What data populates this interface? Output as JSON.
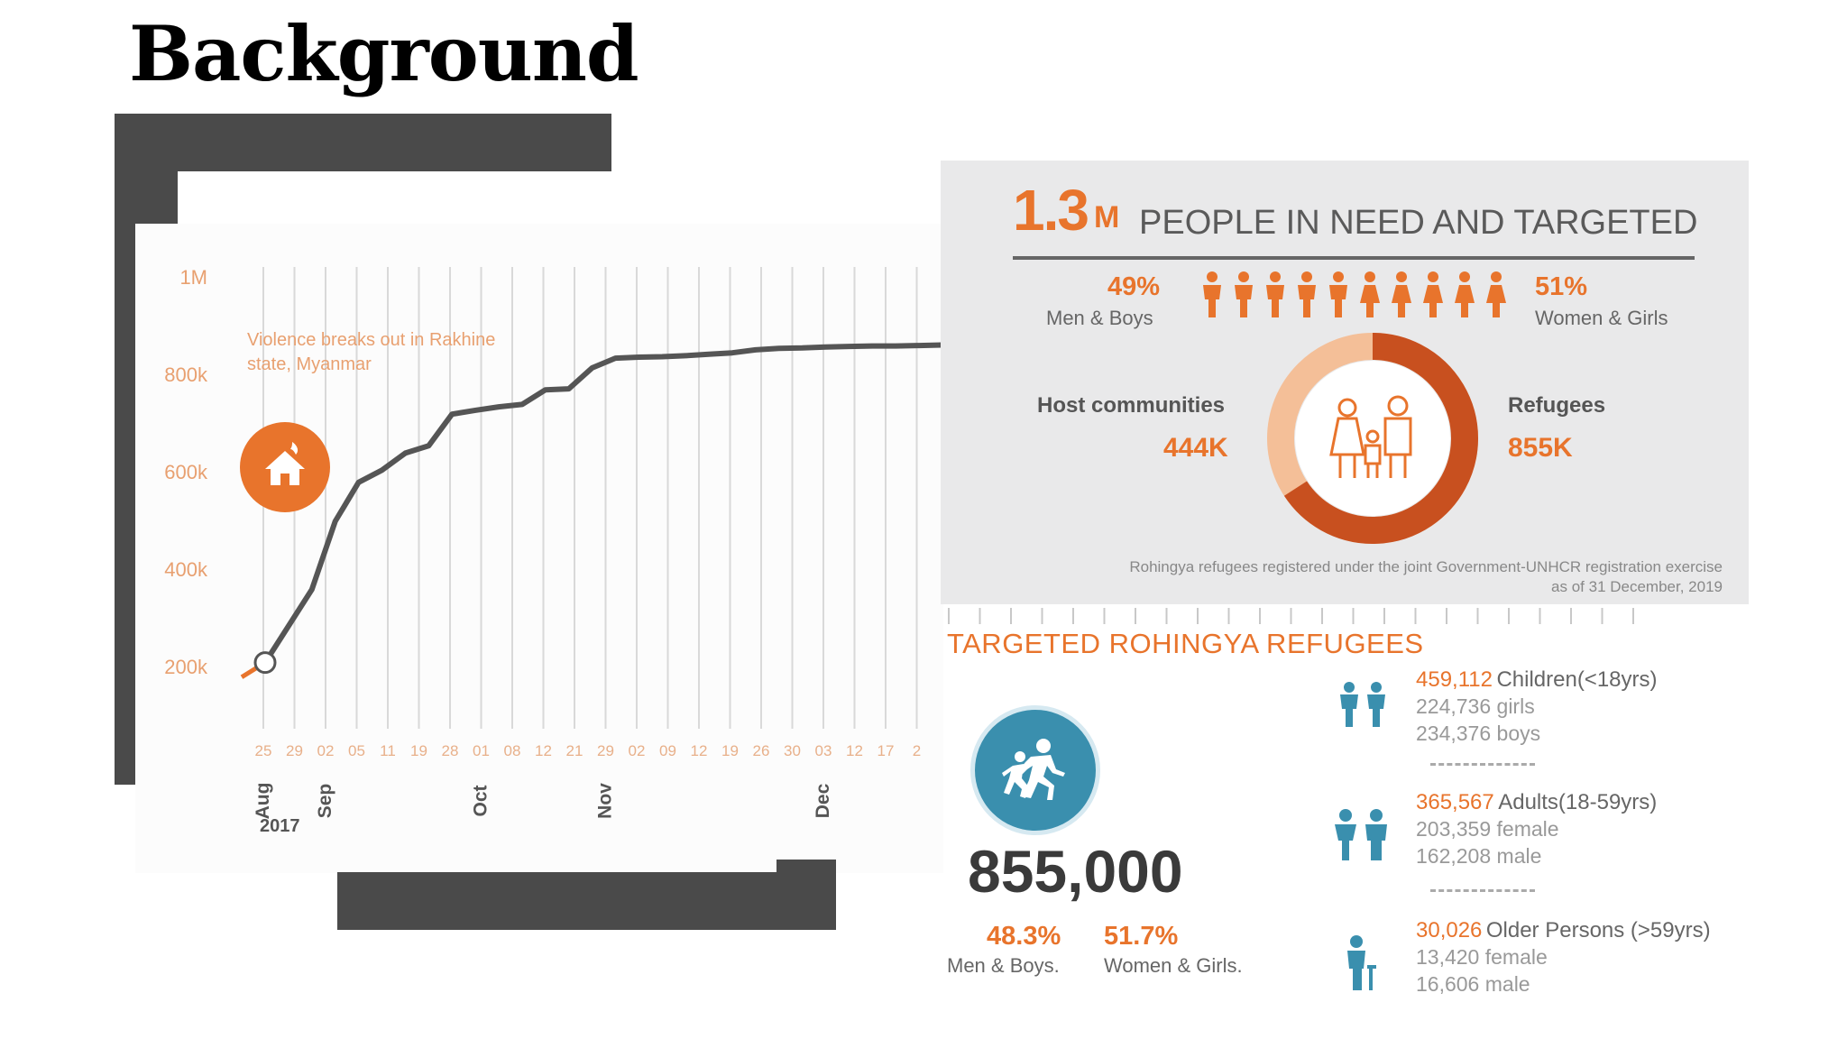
{
  "slide": {
    "title": "Background"
  },
  "chart_data": {
    "type": "line",
    "title": "",
    "annotation": "Violence breaks out in Rakhine state, Myanmar",
    "y_ticks": [
      "1M",
      "800k",
      "600k",
      "400k",
      "200k"
    ],
    "ylim": [
      0,
      1000000
    ],
    "x_tick_labels": [
      "25",
      "29",
      "02",
      "05",
      "11",
      "19",
      "28",
      "01",
      "08",
      "12",
      "21",
      "29",
      "02",
      "09",
      "12",
      "19",
      "26",
      "30",
      "03",
      "12",
      "17",
      "2"
    ],
    "month_labels": [
      "Aug",
      "Sep",
      "Oct",
      "Nov",
      "Dec"
    ],
    "year_label": "2017",
    "series": [
      {
        "values": [
          210000,
          285000,
          360000,
          500000,
          580000,
          605000,
          640000,
          655000,
          720000,
          728000,
          735000,
          740000,
          770000,
          772000,
          815000,
          835000,
          837000,
          838000,
          840000,
          843000,
          846000,
          852000,
          855000,
          856000,
          858000,
          859000,
          860000,
          860000,
          861000,
          862000
        ]
      }
    ],
    "accent_color": "#e8742c",
    "line_color": "#555555"
  },
  "infographic": {
    "total_value": "1.3",
    "total_unit": "M",
    "total_label": "PEOPLE IN NEED AND TARGETED",
    "men_boys_pct": "49%",
    "men_boys_label": "Men & Boys",
    "women_girls_pct": "51%",
    "women_girls_label": "Women & Girls",
    "host_label": "Host communities",
    "host_value": "444K",
    "refugees_label": "Refugees",
    "refugees_value": "855K",
    "note_line1": "Rohingya refugees registered under the joint Government-UNHCR registration exercise",
    "note_line2": "as of 31 December, 2019",
    "people_icons": 10
  },
  "refugees": {
    "title": "TARGETED ROHINGYA REFUGEES",
    "total": "855,000",
    "men_boys_pct": "48.3%",
    "men_boys_label": "Men & Boys.",
    "women_girls_pct": "51.7%",
    "women_girls_label": "Women & Girls.",
    "children": {
      "number": "459,112",
      "label": "Children(<18yrs)",
      "line1": "224,736 girls",
      "line2": "234,376 boys"
    },
    "adults": {
      "number": "365,567",
      "label": "Adults(18-59yrs)",
      "line1": "203,359 female",
      "line2": "162,208 male"
    },
    "older": {
      "number": "30,026",
      "label": "Older Persons (>59yrs)",
      "line1": "13,420 female",
      "line2": "16,606 male"
    }
  }
}
